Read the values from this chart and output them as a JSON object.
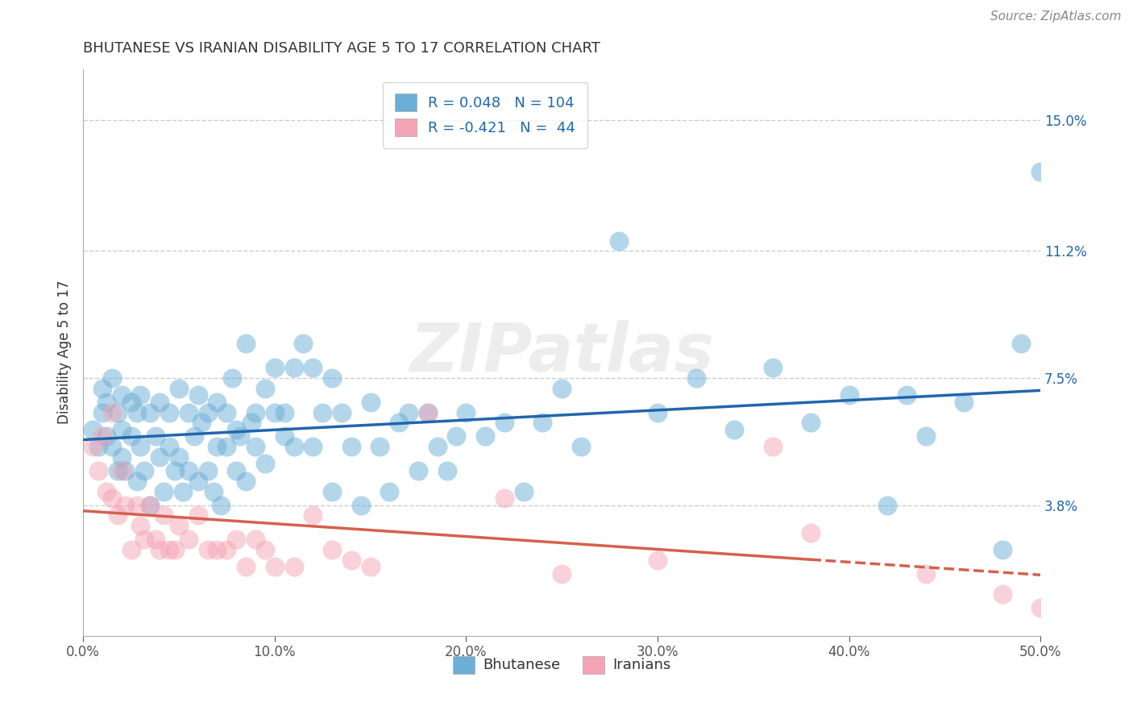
{
  "title": "BHUTANESE VS IRANIAN DISABILITY AGE 5 TO 17 CORRELATION CHART",
  "source": "Source: ZipAtlas.com",
  "ylabel": "Disability Age 5 to 17",
  "xlim": [
    0.0,
    0.5
  ],
  "ylim": [
    0.0,
    0.165
  ],
  "yticks": [
    0.038,
    0.075,
    0.112,
    0.15
  ],
  "yticklabels": [
    "3.8%",
    "7.5%",
    "11.2%",
    "15.0%"
  ],
  "blue_color": "#6baed6",
  "pink_color": "#f4a4b4",
  "blue_line_color": "#2166ac",
  "pink_line_color": "#d6604d",
  "legend_blue_r": "R = 0.048",
  "legend_blue_n": "N = 104",
  "legend_pink_r": "R = -0.421",
  "legend_pink_n": "N =  44",
  "watermark": "ZIPatlas",
  "background_color": "#ffffff",
  "grid_color": "#cccccc",
  "blue_scatter_x": [
    0.005,
    0.008,
    0.01,
    0.01,
    0.012,
    0.012,
    0.015,
    0.015,
    0.018,
    0.018,
    0.02,
    0.02,
    0.02,
    0.022,
    0.025,
    0.025,
    0.028,
    0.028,
    0.03,
    0.03,
    0.032,
    0.035,
    0.035,
    0.038,
    0.04,
    0.04,
    0.042,
    0.045,
    0.045,
    0.048,
    0.05,
    0.05,
    0.052,
    0.055,
    0.055,
    0.058,
    0.06,
    0.06,
    0.062,
    0.065,
    0.065,
    0.068,
    0.07,
    0.07,
    0.072,
    0.075,
    0.075,
    0.078,
    0.08,
    0.08,
    0.082,
    0.085,
    0.085,
    0.088,
    0.09,
    0.09,
    0.095,
    0.095,
    0.1,
    0.1,
    0.105,
    0.105,
    0.11,
    0.11,
    0.115,
    0.12,
    0.12,
    0.125,
    0.13,
    0.13,
    0.135,
    0.14,
    0.145,
    0.15,
    0.155,
    0.16,
    0.165,
    0.17,
    0.175,
    0.18,
    0.185,
    0.19,
    0.195,
    0.2,
    0.21,
    0.22,
    0.23,
    0.24,
    0.25,
    0.26,
    0.28,
    0.3,
    0.32,
    0.34,
    0.36,
    0.38,
    0.4,
    0.42,
    0.44,
    0.46,
    0.48,
    0.49,
    0.5,
    0.43
  ],
  "blue_scatter_y": [
    0.06,
    0.055,
    0.065,
    0.072,
    0.058,
    0.068,
    0.055,
    0.075,
    0.048,
    0.065,
    0.052,
    0.06,
    0.07,
    0.048,
    0.058,
    0.068,
    0.045,
    0.065,
    0.055,
    0.07,
    0.048,
    0.065,
    0.038,
    0.058,
    0.052,
    0.068,
    0.042,
    0.055,
    0.065,
    0.048,
    0.052,
    0.072,
    0.042,
    0.065,
    0.048,
    0.058,
    0.07,
    0.045,
    0.062,
    0.048,
    0.065,
    0.042,
    0.055,
    0.068,
    0.038,
    0.065,
    0.055,
    0.075,
    0.06,
    0.048,
    0.058,
    0.085,
    0.045,
    0.062,
    0.055,
    0.065,
    0.05,
    0.072,
    0.065,
    0.078,
    0.058,
    0.065,
    0.078,
    0.055,
    0.085,
    0.055,
    0.078,
    0.065,
    0.042,
    0.075,
    0.065,
    0.055,
    0.038,
    0.068,
    0.055,
    0.042,
    0.062,
    0.065,
    0.048,
    0.065,
    0.055,
    0.048,
    0.058,
    0.065,
    0.058,
    0.062,
    0.042,
    0.062,
    0.072,
    0.055,
    0.115,
    0.065,
    0.075,
    0.06,
    0.078,
    0.062,
    0.07,
    0.038,
    0.058,
    0.068,
    0.025,
    0.085,
    0.135,
    0.07
  ],
  "pink_scatter_x": [
    0.005,
    0.008,
    0.01,
    0.012,
    0.015,
    0.015,
    0.018,
    0.02,
    0.022,
    0.025,
    0.028,
    0.03,
    0.032,
    0.035,
    0.038,
    0.04,
    0.042,
    0.045,
    0.048,
    0.05,
    0.055,
    0.06,
    0.065,
    0.07,
    0.075,
    0.08,
    0.085,
    0.09,
    0.095,
    0.1,
    0.11,
    0.12,
    0.13,
    0.14,
    0.15,
    0.18,
    0.22,
    0.25,
    0.3,
    0.36,
    0.38,
    0.44,
    0.48,
    0.5
  ],
  "pink_scatter_y": [
    0.055,
    0.048,
    0.058,
    0.042,
    0.065,
    0.04,
    0.035,
    0.048,
    0.038,
    0.025,
    0.038,
    0.032,
    0.028,
    0.038,
    0.028,
    0.025,
    0.035,
    0.025,
    0.025,
    0.032,
    0.028,
    0.035,
    0.025,
    0.025,
    0.025,
    0.028,
    0.02,
    0.028,
    0.025,
    0.02,
    0.02,
    0.035,
    0.025,
    0.022,
    0.02,
    0.065,
    0.04,
    0.018,
    0.022,
    0.055,
    0.03,
    0.018,
    0.012,
    0.008
  ]
}
